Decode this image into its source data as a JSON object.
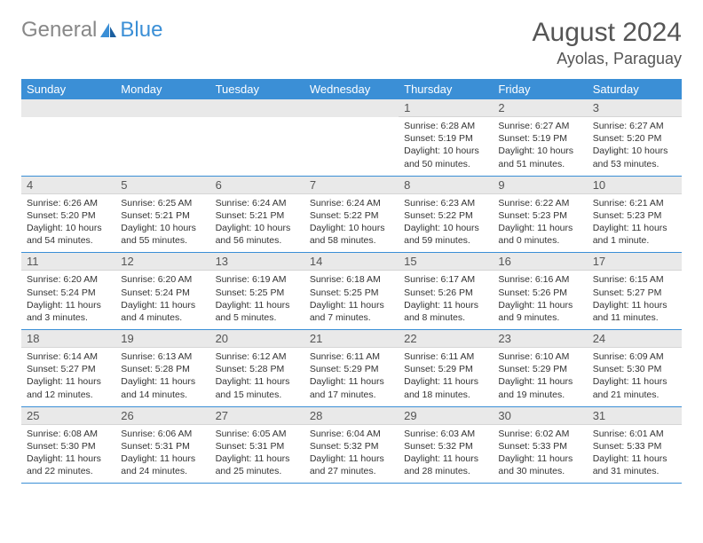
{
  "logo": {
    "text_gray": "General",
    "text_blue": "Blue"
  },
  "title": "August 2024",
  "location": "Ayolas, Paraguay",
  "days_of_week": [
    "Sunday",
    "Monday",
    "Tuesday",
    "Wednesday",
    "Thursday",
    "Friday",
    "Saturday"
  ],
  "colors": {
    "header_bg": "#3b8fd6",
    "header_text": "#ffffff",
    "daynum_bg": "#e9e9e9",
    "row_border": "#3b8fd6"
  },
  "weeks": [
    [
      null,
      null,
      null,
      null,
      {
        "n": "1",
        "sunrise": "Sunrise: 6:28 AM",
        "sunset": "Sunset: 5:19 PM",
        "daylight": "Daylight: 10 hours and 50 minutes."
      },
      {
        "n": "2",
        "sunrise": "Sunrise: 6:27 AM",
        "sunset": "Sunset: 5:19 PM",
        "daylight": "Daylight: 10 hours and 51 minutes."
      },
      {
        "n": "3",
        "sunrise": "Sunrise: 6:27 AM",
        "sunset": "Sunset: 5:20 PM",
        "daylight": "Daylight: 10 hours and 53 minutes."
      }
    ],
    [
      {
        "n": "4",
        "sunrise": "Sunrise: 6:26 AM",
        "sunset": "Sunset: 5:20 PM",
        "daylight": "Daylight: 10 hours and 54 minutes."
      },
      {
        "n": "5",
        "sunrise": "Sunrise: 6:25 AM",
        "sunset": "Sunset: 5:21 PM",
        "daylight": "Daylight: 10 hours and 55 minutes."
      },
      {
        "n": "6",
        "sunrise": "Sunrise: 6:24 AM",
        "sunset": "Sunset: 5:21 PM",
        "daylight": "Daylight: 10 hours and 56 minutes."
      },
      {
        "n": "7",
        "sunrise": "Sunrise: 6:24 AM",
        "sunset": "Sunset: 5:22 PM",
        "daylight": "Daylight: 10 hours and 58 minutes."
      },
      {
        "n": "8",
        "sunrise": "Sunrise: 6:23 AM",
        "sunset": "Sunset: 5:22 PM",
        "daylight": "Daylight: 10 hours and 59 minutes."
      },
      {
        "n": "9",
        "sunrise": "Sunrise: 6:22 AM",
        "sunset": "Sunset: 5:23 PM",
        "daylight": "Daylight: 11 hours and 0 minutes."
      },
      {
        "n": "10",
        "sunrise": "Sunrise: 6:21 AM",
        "sunset": "Sunset: 5:23 PM",
        "daylight": "Daylight: 11 hours and 1 minute."
      }
    ],
    [
      {
        "n": "11",
        "sunrise": "Sunrise: 6:20 AM",
        "sunset": "Sunset: 5:24 PM",
        "daylight": "Daylight: 11 hours and 3 minutes."
      },
      {
        "n": "12",
        "sunrise": "Sunrise: 6:20 AM",
        "sunset": "Sunset: 5:24 PM",
        "daylight": "Daylight: 11 hours and 4 minutes."
      },
      {
        "n": "13",
        "sunrise": "Sunrise: 6:19 AM",
        "sunset": "Sunset: 5:25 PM",
        "daylight": "Daylight: 11 hours and 5 minutes."
      },
      {
        "n": "14",
        "sunrise": "Sunrise: 6:18 AM",
        "sunset": "Sunset: 5:25 PM",
        "daylight": "Daylight: 11 hours and 7 minutes."
      },
      {
        "n": "15",
        "sunrise": "Sunrise: 6:17 AM",
        "sunset": "Sunset: 5:26 PM",
        "daylight": "Daylight: 11 hours and 8 minutes."
      },
      {
        "n": "16",
        "sunrise": "Sunrise: 6:16 AM",
        "sunset": "Sunset: 5:26 PM",
        "daylight": "Daylight: 11 hours and 9 minutes."
      },
      {
        "n": "17",
        "sunrise": "Sunrise: 6:15 AM",
        "sunset": "Sunset: 5:27 PM",
        "daylight": "Daylight: 11 hours and 11 minutes."
      }
    ],
    [
      {
        "n": "18",
        "sunrise": "Sunrise: 6:14 AM",
        "sunset": "Sunset: 5:27 PM",
        "daylight": "Daylight: 11 hours and 12 minutes."
      },
      {
        "n": "19",
        "sunrise": "Sunrise: 6:13 AM",
        "sunset": "Sunset: 5:28 PM",
        "daylight": "Daylight: 11 hours and 14 minutes."
      },
      {
        "n": "20",
        "sunrise": "Sunrise: 6:12 AM",
        "sunset": "Sunset: 5:28 PM",
        "daylight": "Daylight: 11 hours and 15 minutes."
      },
      {
        "n": "21",
        "sunrise": "Sunrise: 6:11 AM",
        "sunset": "Sunset: 5:29 PM",
        "daylight": "Daylight: 11 hours and 17 minutes."
      },
      {
        "n": "22",
        "sunrise": "Sunrise: 6:11 AM",
        "sunset": "Sunset: 5:29 PM",
        "daylight": "Daylight: 11 hours and 18 minutes."
      },
      {
        "n": "23",
        "sunrise": "Sunrise: 6:10 AM",
        "sunset": "Sunset: 5:29 PM",
        "daylight": "Daylight: 11 hours and 19 minutes."
      },
      {
        "n": "24",
        "sunrise": "Sunrise: 6:09 AM",
        "sunset": "Sunset: 5:30 PM",
        "daylight": "Daylight: 11 hours and 21 minutes."
      }
    ],
    [
      {
        "n": "25",
        "sunrise": "Sunrise: 6:08 AM",
        "sunset": "Sunset: 5:30 PM",
        "daylight": "Daylight: 11 hours and 22 minutes."
      },
      {
        "n": "26",
        "sunrise": "Sunrise: 6:06 AM",
        "sunset": "Sunset: 5:31 PM",
        "daylight": "Daylight: 11 hours and 24 minutes."
      },
      {
        "n": "27",
        "sunrise": "Sunrise: 6:05 AM",
        "sunset": "Sunset: 5:31 PM",
        "daylight": "Daylight: 11 hours and 25 minutes."
      },
      {
        "n": "28",
        "sunrise": "Sunrise: 6:04 AM",
        "sunset": "Sunset: 5:32 PM",
        "daylight": "Daylight: 11 hours and 27 minutes."
      },
      {
        "n": "29",
        "sunrise": "Sunrise: 6:03 AM",
        "sunset": "Sunset: 5:32 PM",
        "daylight": "Daylight: 11 hours and 28 minutes."
      },
      {
        "n": "30",
        "sunrise": "Sunrise: 6:02 AM",
        "sunset": "Sunset: 5:33 PM",
        "daylight": "Daylight: 11 hours and 30 minutes."
      },
      {
        "n": "31",
        "sunrise": "Sunrise: 6:01 AM",
        "sunset": "Sunset: 5:33 PM",
        "daylight": "Daylight: 11 hours and 31 minutes."
      }
    ]
  ]
}
